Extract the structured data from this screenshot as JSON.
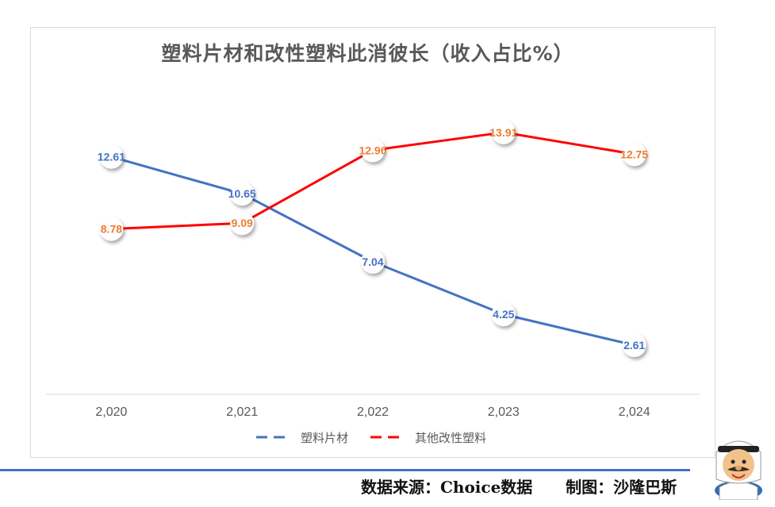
{
  "chart_data": {
    "type": "line",
    "title": "塑料片材和改性塑料此消彼长（收入占比%）",
    "categories": [
      "2,020",
      "2,021",
      "2,022",
      "2,023",
      "2,024"
    ],
    "series": [
      {
        "name": "塑料片材",
        "values": [
          12.61,
          10.65,
          7.04,
          4.25,
          2.61
        ],
        "color": "#4472c4",
        "label_color": "#4472c4",
        "legend_dash": true
      },
      {
        "name": "其他改性塑料",
        "values": [
          8.78,
          9.09,
          12.96,
          13.91,
          12.75
        ],
        "color": "#ff0000",
        "label_color": "#ed7d31",
        "legend_dash": true
      }
    ],
    "ylim": [
      0,
      16
    ],
    "grid": false,
    "legend": "bottom"
  },
  "footer": {
    "text": "数据来源：Choice数据      制图：沙隆巴斯"
  },
  "mascot": {
    "icon": "arab-man-cartoon-icon"
  }
}
